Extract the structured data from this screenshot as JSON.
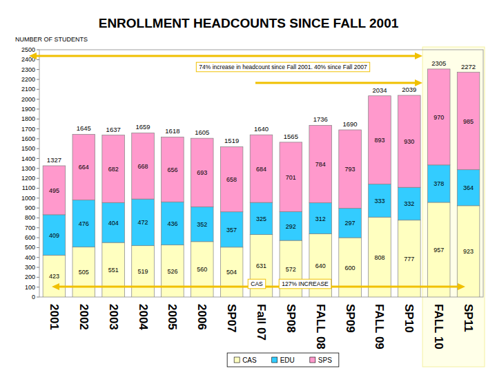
{
  "chart_data": {
    "type": "bar",
    "stacked": true,
    "data_labels": true,
    "grid": false,
    "legend": "bottom",
    "title": "ENROLLMENT HEADCOUNTS SINCE FALL 2001",
    "y_label": "NUMBER OF STUDENTS",
    "categories": [
      "2001",
      "2002",
      "2003",
      "2004",
      "2005",
      "2006",
      "SP07",
      "Fall 07",
      "SP08",
      "FALL 08",
      "SP09",
      "FALL 09",
      "SP10",
      "FALL 10",
      "SP11"
    ],
    "series": [
      {
        "name": "CAS",
        "color": "#ffffc0",
        "values": [
          423,
          505,
          551,
          519,
          526,
          560,
          504,
          631,
          572,
          640,
          600,
          808,
          777,
          957,
          923
        ]
      },
      {
        "name": "EDU",
        "color": "#33ccff",
        "values": [
          409,
          476,
          404,
          472,
          436,
          352,
          357,
          325,
          292,
          312,
          297,
          333,
          332,
          378,
          364
        ]
      },
      {
        "name": "SPS",
        "color": "#ff99cc",
        "values": [
          495,
          664,
          682,
          668,
          656,
          693,
          658,
          684,
          701,
          784,
          793,
          893,
          930,
          970,
          985
        ]
      }
    ],
    "totals": [
      1327,
      1645,
      1637,
      1659,
      1618,
      1605,
      1519,
      1640,
      1565,
      1736,
      1690,
      2034,
      2039,
      2305,
      2272
    ],
    "annotations": [
      "74% increase in headcount since Fall 2001. 40% since Fall 2007",
      "CAS",
      "127% INCREASE"
    ],
    "ylim": [
      0,
      2500
    ],
    "yticks": [
      0,
      100,
      200,
      300,
      400,
      500,
      600,
      700,
      800,
      900,
      1000,
      1100,
      1200,
      1300,
      1400,
      1500,
      1600,
      1700,
      1800,
      1900,
      2000,
      2100,
      2200,
      2300,
      2400,
      2500
    ]
  }
}
